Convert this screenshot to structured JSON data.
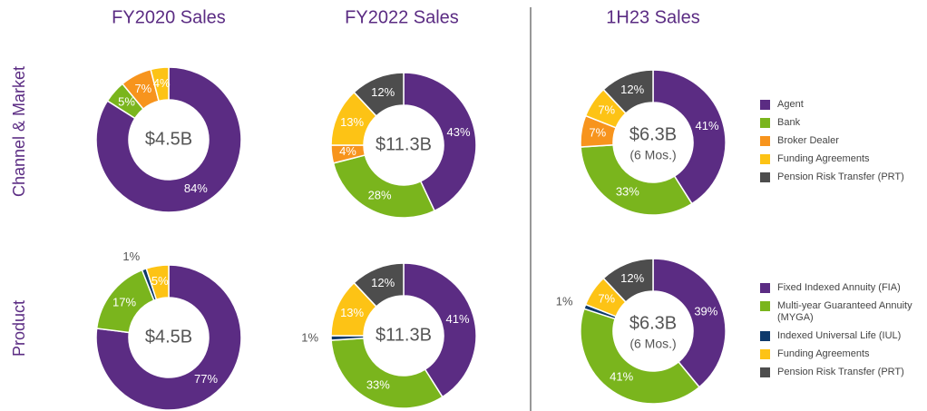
{
  "column_titles": [
    "FY2020 Sales",
    "FY2022 Sales",
    "1H23 Sales"
  ],
  "row_titles": [
    "Channel & Market",
    "Product"
  ],
  "chart_data": [
    {
      "type": "pie",
      "center_label": "$4.5B",
      "categories": [
        "Agent",
        "Bank",
        "Broker Dealer",
        "Funding Agreements"
      ],
      "values": [
        84,
        5,
        7,
        4
      ],
      "value_labels": [
        "84%",
        "5%",
        "7%",
        "4%"
      ],
      "colors": [
        "#5b2c83",
        "#7ab51d",
        "#f7941d",
        "#fdc315"
      ]
    },
    {
      "type": "pie",
      "center_label": "$11.3B",
      "categories": [
        "Agent",
        "Bank",
        "Broker Dealer",
        "Funding Agreements",
        "Pension Risk Transfer (PRT)"
      ],
      "values": [
        43,
        28,
        4,
        13,
        12
      ],
      "value_labels": [
        "43%",
        "28%",
        "4%",
        "13%",
        "12%"
      ],
      "colors": [
        "#5b2c83",
        "#7ab51d",
        "#f7941d",
        "#fdc315",
        "#4d4d4d"
      ]
    },
    {
      "type": "pie",
      "center_label": "$6.3B",
      "center_sublabel": "(6 Mos.)",
      "categories": [
        "Agent",
        "Bank",
        "Broker Dealer",
        "Funding Agreements",
        "Pension Risk Transfer (PRT)"
      ],
      "values": [
        41,
        33,
        7,
        7,
        12
      ],
      "value_labels": [
        "41%",
        "33%",
        "7%",
        "7%",
        "12%"
      ],
      "colors": [
        "#5b2c83",
        "#7ab51d",
        "#f7941d",
        "#fdc315",
        "#4d4d4d"
      ]
    },
    {
      "type": "pie",
      "center_label": "$4.5B",
      "categories": [
        "Fixed Indexed Annuity (FIA)",
        "Multi-year Guaranteed Annuity (MYGA)",
        "Indexed Universal Life (IUL)",
        "Funding Agreements"
      ],
      "values": [
        77,
        17,
        1,
        5
      ],
      "value_labels": [
        "77%",
        "17%",
        "1%",
        "5%"
      ],
      "colors": [
        "#5b2c83",
        "#7ab51d",
        "#0f3a6b",
        "#fdc315"
      ]
    },
    {
      "type": "pie",
      "center_label": "$11.3B",
      "categories": [
        "Fixed Indexed Annuity (FIA)",
        "Multi-year Guaranteed Annuity (MYGA)",
        "Indexed Universal Life (IUL)",
        "Funding Agreements",
        "Pension Risk Transfer (PRT)"
      ],
      "values": [
        41,
        33,
        1,
        13,
        12
      ],
      "value_labels": [
        "41%",
        "33%",
        "1%",
        "13%",
        "12%"
      ],
      "colors": [
        "#5b2c83",
        "#7ab51d",
        "#0f3a6b",
        "#fdc315",
        "#4d4d4d"
      ]
    },
    {
      "type": "pie",
      "center_label": "$6.3B",
      "center_sublabel": "(6 Mos.)",
      "categories": [
        "Fixed Indexed Annuity (FIA)",
        "Multi-year Guaranteed Annuity (MYGA)",
        "Indexed Universal Life (IUL)",
        "Funding Agreements",
        "Pension Risk Transfer (PRT)"
      ],
      "values": [
        39,
        41,
        1,
        7,
        12
      ],
      "value_labels": [
        "39%",
        "41%",
        "1%",
        "7%",
        "12%"
      ],
      "colors": [
        "#5b2c83",
        "#7ab51d",
        "#0f3a6b",
        "#fdc315",
        "#4d4d4d"
      ]
    }
  ]
}
